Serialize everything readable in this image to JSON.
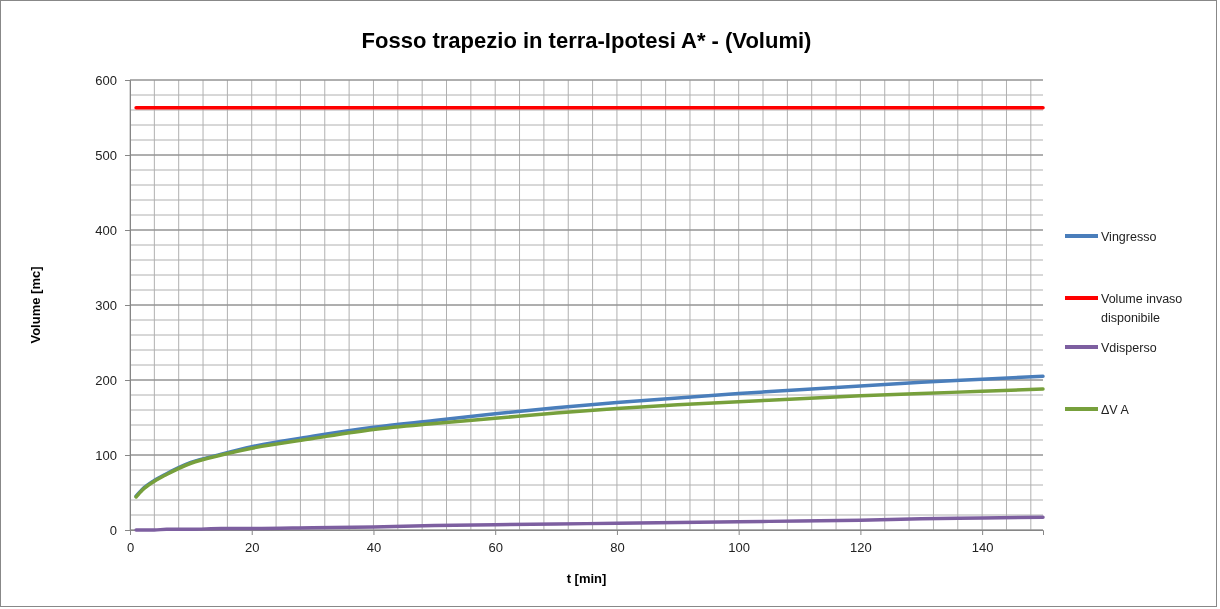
{
  "chart_data": {
    "type": "line",
    "title": "Fosso trapezio in terra-Ipotesi A* - (Volumi)",
    "xlabel": "t [min]",
    "ylabel": "Volume [mc]",
    "xlim": [
      0,
      150
    ],
    "xticks": [
      0,
      20,
      40,
      60,
      80,
      100,
      120,
      140
    ],
    "ylim": [
      0,
      600
    ],
    "yticks": [
      0,
      100,
      200,
      300,
      400,
      500,
      600
    ],
    "grid": true,
    "legend": "right",
    "marker": "none",
    "line_style": "solid",
    "x": [
      1,
      2,
      4,
      6,
      10,
      15,
      20,
      30,
      40,
      50,
      60,
      70,
      80,
      90,
      100,
      110,
      120,
      130,
      140,
      150
    ],
    "series": [
      {
        "name": "Vingresso",
        "color": "#4a7ebb",
        "values": [
          45,
          54,
          66,
          75,
          90,
          101,
          111,
          125,
          137,
          146,
          155,
          163,
          170,
          176,
          182,
          187,
          192,
          197,
          201,
          205
        ]
      },
      {
        "name": "Volume invaso disponibile",
        "color": "#ff0000",
        "values": [
          563,
          563,
          563,
          563,
          563,
          563,
          563,
          563,
          563,
          563,
          563,
          563,
          563,
          563,
          563,
          563,
          563,
          563,
          563,
          563
        ]
      },
      {
        "name": "Vdisperso",
        "color": "#7d5fa0",
        "values": [
          0,
          0,
          0,
          1,
          1,
          2,
          2,
          3,
          4,
          6,
          7,
          8,
          9,
          10,
          11,
          12,
          13,
          15,
          16,
          17
        ]
      },
      {
        "name": "ΔV A",
        "color": "#77a03c",
        "values": [
          44,
          53,
          65,
          74,
          89,
          100,
          109,
          122,
          134,
          142,
          149,
          156,
          162,
          167,
          171,
          175,
          179,
          182,
          185,
          188
        ]
      }
    ]
  }
}
